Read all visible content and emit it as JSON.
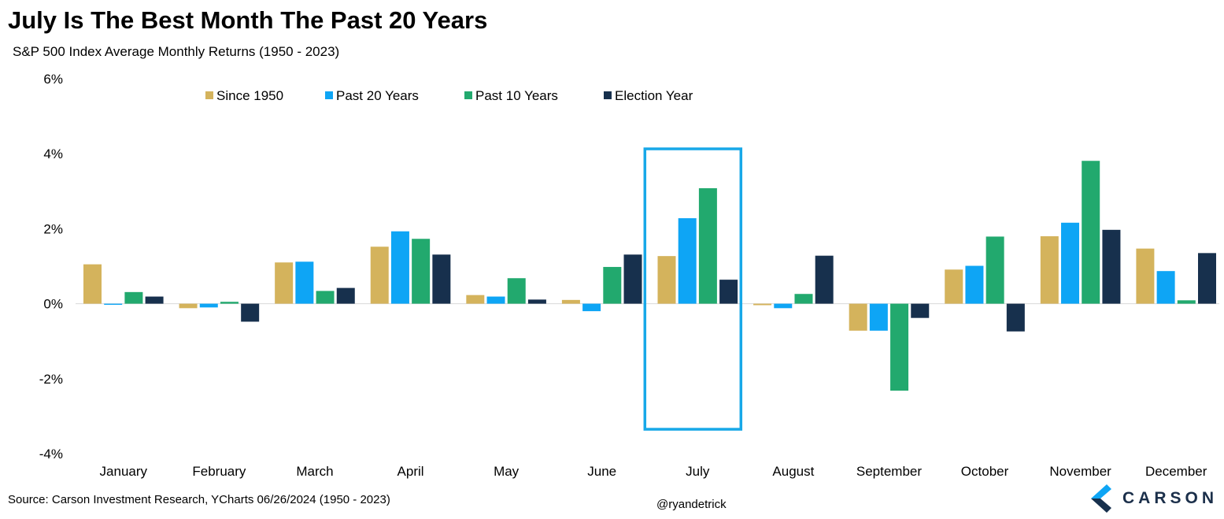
{
  "title": "July Is The Best Month The Past 20 Years",
  "subtitle": "S&P 500 Index Average Monthly Returns (1950 - 2023)",
  "source": "Source: Carson Investment Research, YCharts 06/26/2024 (1950 - 2023)",
  "handle": "@ryandetrick",
  "brand": "CARSON",
  "chart_data": {
    "type": "bar",
    "categories": [
      "January",
      "February",
      "March",
      "April",
      "May",
      "June",
      "July",
      "August",
      "September",
      "October",
      "November",
      "December"
    ],
    "series": [
      {
        "name": "Since 1950",
        "color": "#d4b35c",
        "values": [
          1.05,
          -0.12,
          1.1,
          1.52,
          0.23,
          0.1,
          1.27,
          -0.04,
          -0.72,
          0.91,
          1.8,
          1.47
        ]
      },
      {
        "name": "Past 20 Years",
        "color": "#0ea5f5",
        "values": [
          -0.03,
          -0.1,
          1.12,
          1.93,
          0.19,
          -0.2,
          2.28,
          -0.12,
          -0.72,
          1.01,
          2.16,
          0.87
        ]
      },
      {
        "name": "Past 10 Years",
        "color": "#22a96e",
        "values": [
          0.31,
          0.05,
          0.34,
          1.73,
          0.68,
          0.98,
          3.08,
          0.26,
          -2.32,
          1.79,
          3.81,
          0.09
        ]
      },
      {
        "name": "Election Year",
        "color": "#17304d",
        "values": [
          0.19,
          -0.48,
          0.42,
          1.31,
          0.11,
          1.31,
          0.64,
          1.28,
          -0.38,
          -0.74,
          1.97,
          1.35
        ]
      }
    ],
    "ylim": [
      -4,
      6
    ],
    "yticks": [
      -4,
      -2,
      0,
      2,
      4,
      6
    ],
    "ytick_labels": [
      "-4%",
      "-2%",
      "0%",
      "2%",
      "4%",
      "6%"
    ],
    "highlight_category": "July",
    "highlight_color": "#17a8e8",
    "legend_position": "top-center",
    "grid": false,
    "xlabel": "",
    "ylabel": ""
  }
}
